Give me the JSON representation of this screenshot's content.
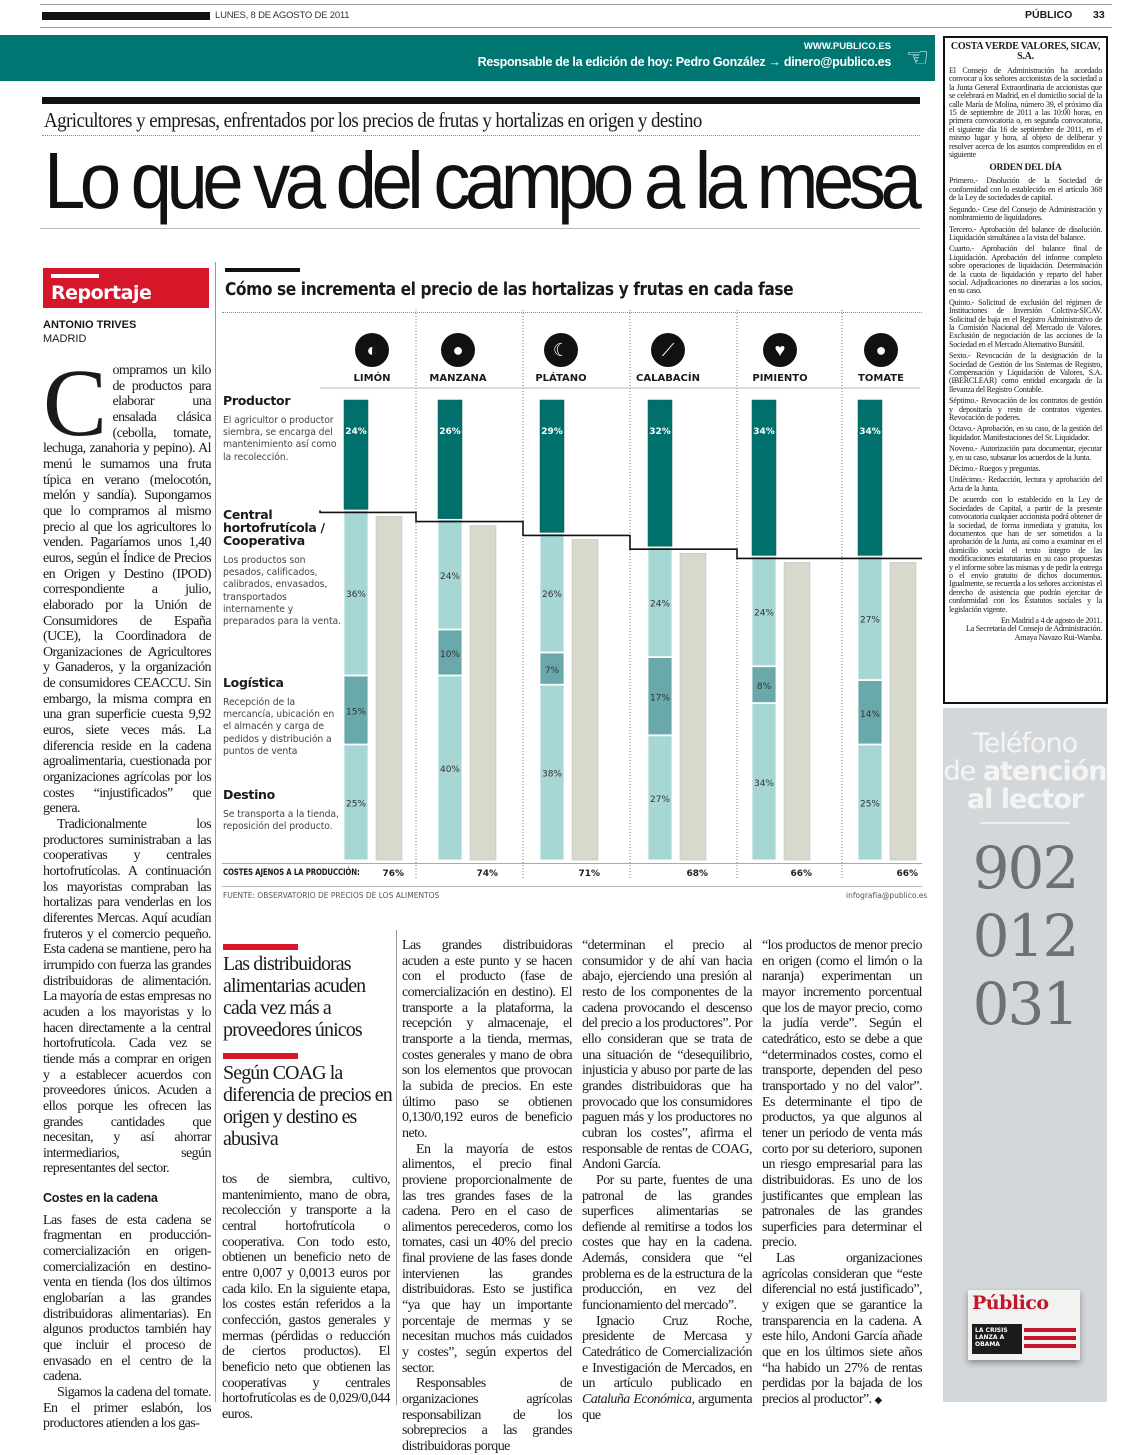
{
  "masthead": {
    "date": "LUNES, 8 DE AGOSTO DE 2011",
    "paper": "PÚBLICO",
    "page": "33"
  },
  "band": {
    "url": "WWW.PUBLICO.ES",
    "editor": "Responsable de la edición de hoy: Pedro González → dinero@publico.es",
    "icon": "pointing-hand-icon"
  },
  "legal": {
    "title": "COSTA VERDE VALORES, SICAV, S.A.",
    "intro": "El Consejo de Administración ha acordado convocar a los señores accionistas de la sociedad a la Junta General Extraordinaria de accionistas que se celebrará en Madrid, en el domicilio social de la calle María de Molina, número 39, el próximo día 15 de septiembre de 2011 a las 10:00 horas, en primera convocatoria o, en segunda convocatoria, el siguiente día 16 de septiembre de 2011, en el mismo lugar y hora, al objeto de deliberar y resolver acerca de los asuntos comprendidos en el siguiente",
    "orden_title": "ORDEN DEL DÍA",
    "items": [
      "Primero.- Disolución de la Sociedad de conformidad con lo establecido en el artículo 368 de la Ley de sociedades de capital.",
      "Segundo.- Cese del Consejo de Administración y nombramiento de liquidadores.",
      "Tercero.- Aprobación del balance de disolución. Liquidación simultánea a la vista del balance.",
      "Cuarto.- Aprobación del balance final de Liquidación. Aprobación del informe completo sobre operaciones de liquidación. Determinación de la cuota de liquidación y reparto del haber social. Adjudicaciones no dinerarias a los socios, en su caso.",
      "Quinto.- Solicitud de exclusión del régimen de Instituciones de Inversión Colctiva-SICAV. Solicitud de baja en el Registro Administrativo de la Comisión Nacional del Mercado de Valores. Exclusión de negociación de las acciones de la Sociedad en el Mercado Altemativo Bursátil.",
      "Sexto.- Revocación de la designación de la Sociedad de Gestión de los Sistemas de Registro, Compensación y Liquidación de Valores, S.A. (IBERCLEAR) como entidad encargada de la llevanza del Registro Contable.",
      "Séptimo.- Revocación de los contratos de gestión y depositaría y resto de contratos vigentes. Revocación de poderes.",
      "Octavo.- Aprobación, en su caso, de la gestión del liquidador. Manifestaciones del Sr. Liquidador.",
      "Noveno.- Autorización para documentar, ejecutar y, en su caso, subsanar los acuerdos de la Junta.",
      "Décimo.- Ruegos y preguntas.",
      "Undécimo.- Redacción, lectura y aprobación del Acta de la Junta."
    ],
    "closing": "De acuerdo con lo establecido en la Ley de Sociedades de Capital, a partir de la presente convocatoria cualquier accionista podrá obtener de la sociedad, de forma inmediata y gratuita, los documentos que han de ser sometidos a la aprobación de la Junta, así como a examinar en el domicilio social el texto íntegro de las modificaciones estatutarias en su caso propuestas y el informe sobre las mismas y de pedir la entrega o el envío gratuito de dichos documentos. Igualmente, se recuerda a los señores accionistas el derecho de asistencia que podrán ejercitar de conformidad con los Estatutos sociales y la legislación vigente.",
    "signoff": [
      "En Madrid a 4 de agosto de 2011.",
      "La Secretaria del Consejo de Administración.",
      "Amaya Navazo Rui-Wamba."
    ]
  },
  "article": {
    "kicker": "Agricultores y empresas, enfrentados por los precios de frutas y hortalizas en origen y destino",
    "headline": "Lo que va del campo a la mesa",
    "section_tag": "Reportaje",
    "author": "ANTONIO TRIVES",
    "location": "MADRID",
    "drop_cap": "C",
    "col1": [
      "ompramos un kilo de productos para elaborar una ensalada clásica (cebolla, tomate, lechuga, zanahoria y pepino). Al menú le sumamos una fruta típica en verano (melocotón, melón y sandía). Supongamos que lo compramos al mismo precio al que los agricultores lo venden. Pagaríamos unos 1,40 euros, según el Índice de Precios en Origen y Destino (IPOD) correspondiente a julio, elaborado por la Unión de Consumidores de España (UCE), la Coordinadora de Organizaciones de Agricultores y Ganaderos, y la organización de consumidores CEACCU. Sin embargo, la misma compra en una gran superficie cuesta 9,92 euros, siete veces más. La diferencia reside en la cadena agroalimentaria, cuestionada por organizaciones agrícolas por los costes “injustificados” que genera.",
      "Tradicionalmente los productores suministraban a las cooperativas y centrales hortofrutícolas. A continuación los mayoristas compraban las hortalizas para venderlas en los diferentes Mercas. Aquí acudían fruteros y el comercio pequeño. Esta cadena se mantiene, pero ha irrumpido con fuerza las grandes distribuidoras de alimentación. La mayoría de estas empresas no acuden a los mayoristas y lo hacen directamente a la central hortofrutícola. Cada vez se tiende más a comprar en origen y a establecer acuerdos con proveedores únicos. Acuden a ellos porque les ofrecen las grandes cantidades que necesitan, y así ahorrar intermediarios, según representantes del sector."
    ],
    "subhead": "Costes en la cadena",
    "col1b": [
      "Las fases de esta cadena se fragmentan en producción-comercialización en origen-comercialización en destino-venta en tienda (los dos últimos englobarían a las grandes distribuidoras alimentarias). En algunos productos también hay que incluir el proceso de envasado en el centro de la cadena.",
      "Sigamos la cadena del tomate. En el primer eslabón, los productores atienden a los gas-"
    ],
    "pullquotes": [
      "Las distribuidoras alimentarias acuden cada vez más a proveedores únicos",
      "Según COAG la diferencia de precios en origen y destino es abusiva"
    ],
    "col2": [
      "tos de siembra, cultivo, mantenimiento, mano de obra, recolección y transporte a la central hortofrutícola o cooperativa. Con todo esto, obtienen un beneficio neto de entre 0,007 y 0,0013 euros por cada kilo. En la siguiente etapa, los costes están referidos a la confección, gastos generales y mermas (pérdidas o reducción de ciertos productos). El beneficio neto que obtienen las cooperativas y centrales hortofrutícolas es de 0,029/0,044 euros."
    ],
    "col3": [
      "Las grandes distribuidoras acuden a este punto y se hacen con el producto (fase de comercialización en destino). El transporte a la plataforma, la recepción y almacenaje, el transporte a la tienda, mermas, costes generales y mano de obra son los elementos que provocan la subida de precios. En este último paso se obtienen 0,130/0,192 euros de beneficio neto.",
      "En la mayoría de estos alimentos, el precio final proviene proporcionalmente de las tres grandes fases de la cadena. Pero en el caso de alimentos perecederos, como los tomates, casi un 40% del precio final proviene de las fases donde intervienen las grandes distribuidoras. Esto se justifica “ya que hay un importante porcentaje de mermas y se necesitan muchos más cuidados y costes”, según expertos del sector.",
      "Responsables de organizaciones agrícolas responsabilizan de los sobreprecios a las grandes distribuidoras porque"
    ],
    "col4": [
      "“determinan el precio al consumidor y de ahí van hacia abajo, ejerciendo una presión al resto de los componentes de la cadena provocando el descenso del precio a los productores”. Por ello consideran que se trata de una situación de “desequilibrio, injusticia y abuso por parte de las grandes distribuidoras que ha provocado que los consumidores paguen más y los productores no cubran los costes”, afirma el responsable de rentas de COAG, Andoni García.",
      "Por su parte, fuentes de una patronal de las grandes superfices alimentarias se defiende al remitirse a todos los costes que hay en la cadena. Además, considera que “el problema es de la estructura de la producción, en vez del funcionamiento del mercado”."
    ],
    "col4_last": {
      "before": "Ignacio Cruz Roche, presidente de Mercasa y Catedrático de Comercialización e Investigación de Mercados, en un artículo publicado en ",
      "italic": "Cataluña Económica",
      "after": ", argumenta que"
    },
    "col5": [
      "“los productos de menor precio en origen (como el limón o la naranja) experimentan un mayor incremento porcentual que los de mayor precio, como la judía verde”. Según el catedrático, esto se debe a que “determinados costes, como el transporte, dependen del peso transportado y no del valor”. Es determinante el tipo de productos, ya que algunos al tener un periodo de venta más corto por su deterioro, suponen un riesgo empresarial para las distribuidoras. Es uno de los justificantes que emplean las patronales de las grandes superficies para determinar el precio.",
      "Las organizaciones agrícolas consideran que “este diferencial no está justificado”, y exigen que se garantice la transparencia en la cadena. A este hilo, Andoni García añade que en los últimos siete años “ha habido un 27% de rentas perdidas por la bajada de los precios al productor”."
    ],
    "end_mark": "◆"
  },
  "infographic": {
    "stages": [
      {
        "name": "Productor",
        "desc": "El agricultor o productor siembra, se encarga del mantenimiento así como la recolección."
      },
      {
        "name": "Central hortofrutícola / Cooperativa",
        "desc": "Los productos son pesados, calificados, calibrados, envasados, transportados internamente y preparados para la venta."
      },
      {
        "name": "Logística",
        "desc": "Recepción de la mercancía, ubicación en el almacén y carga de pedidos y distribución a puntos de venta"
      },
      {
        "name": "Destino",
        "desc": "Se transporta a la tienda, reposición del producto."
      }
    ],
    "products": [
      {
        "name": "LIMÓN",
        "icon": "lemon-icon",
        "glyph": "◐"
      },
      {
        "name": "MANZANA",
        "icon": "apple-icon",
        "glyph": "●"
      },
      {
        "name": "PLÁTANO",
        "icon": "banana-icon",
        "glyph": "☾"
      },
      {
        "name": "CALABACÍN",
        "icon": "zucchini-icon",
        "glyph": "⟋"
      },
      {
        "name": "PIMIENTO",
        "icon": "pepper-icon",
        "glyph": "♥"
      },
      {
        "name": "TOMATE",
        "icon": "tomato-icon",
        "glyph": "●"
      }
    ],
    "costes_label": "COSTES AJENOS A LA PRODUCCIÓN:",
    "fuente": "FUENTE: OBSERVATORIO DE PRECIOS DE LOS ALIMENTOS",
    "credit": "infografia@publico.es"
  },
  "chart_data": {
    "type": "bar",
    "stacked": true,
    "title": "Cómo se incrementa el precio de las hortalizas y frutas en cada fase",
    "categories": [
      "LIMÓN",
      "MANZANA",
      "PLÁTANO",
      "CALABACÍN",
      "PIMIENTO",
      "TOMATE"
    ],
    "unit": "%",
    "series": [
      {
        "name": "Productor",
        "values": [
          24,
          26,
          29,
          32,
          34,
          34
        ],
        "color": "#00706c"
      },
      {
        "name": "Central hortofrutícola / Cooperativa",
        "values": [
          36,
          24,
          26,
          24,
          24,
          27
        ],
        "color": "#a7d7d4"
      },
      {
        "name": "Logística",
        "values": [
          15,
          10,
          7,
          17,
          8,
          14
        ],
        "color": "#6aa9ab"
      },
      {
        "name": "Destino",
        "values": [
          25,
          40,
          38,
          27,
          34,
          25
        ],
        "color": "#a7d7d4"
      }
    ],
    "costes_ajenos": {
      "name": "COSTES AJENOS A LA PRODUCCIÓN",
      "values": [
        76,
        74,
        71,
        68,
        66,
        66
      ],
      "color": "#d8d8cc"
    },
    "labels": {
      "producer": [
        "24%",
        "26%",
        "29%",
        "32%",
        "34%",
        "34%"
      ],
      "central": [
        "36%",
        "24%",
        "26%",
        "24%",
        "24%",
        "27%"
      ],
      "logistica": [
        "15%",
        "10%",
        "7%",
        "17%",
        "8%",
        "14%"
      ],
      "destino": [
        "25%",
        "40%",
        "38%",
        "27%",
        "34%",
        "25%"
      ],
      "costes": [
        "76%",
        "74%",
        "71%",
        "68%",
        "66%",
        "66%"
      ]
    },
    "ylim": [
      0,
      100
    ]
  },
  "ad": {
    "line1": "Teléfono",
    "line2a": "de ",
    "line2b": "atención",
    "line3": "al lector",
    "numbers": [
      "902",
      "012",
      "031"
    ],
    "paper_logo": "Público",
    "paper_headline": "LA CRISIS LANZA A OBAMA"
  }
}
